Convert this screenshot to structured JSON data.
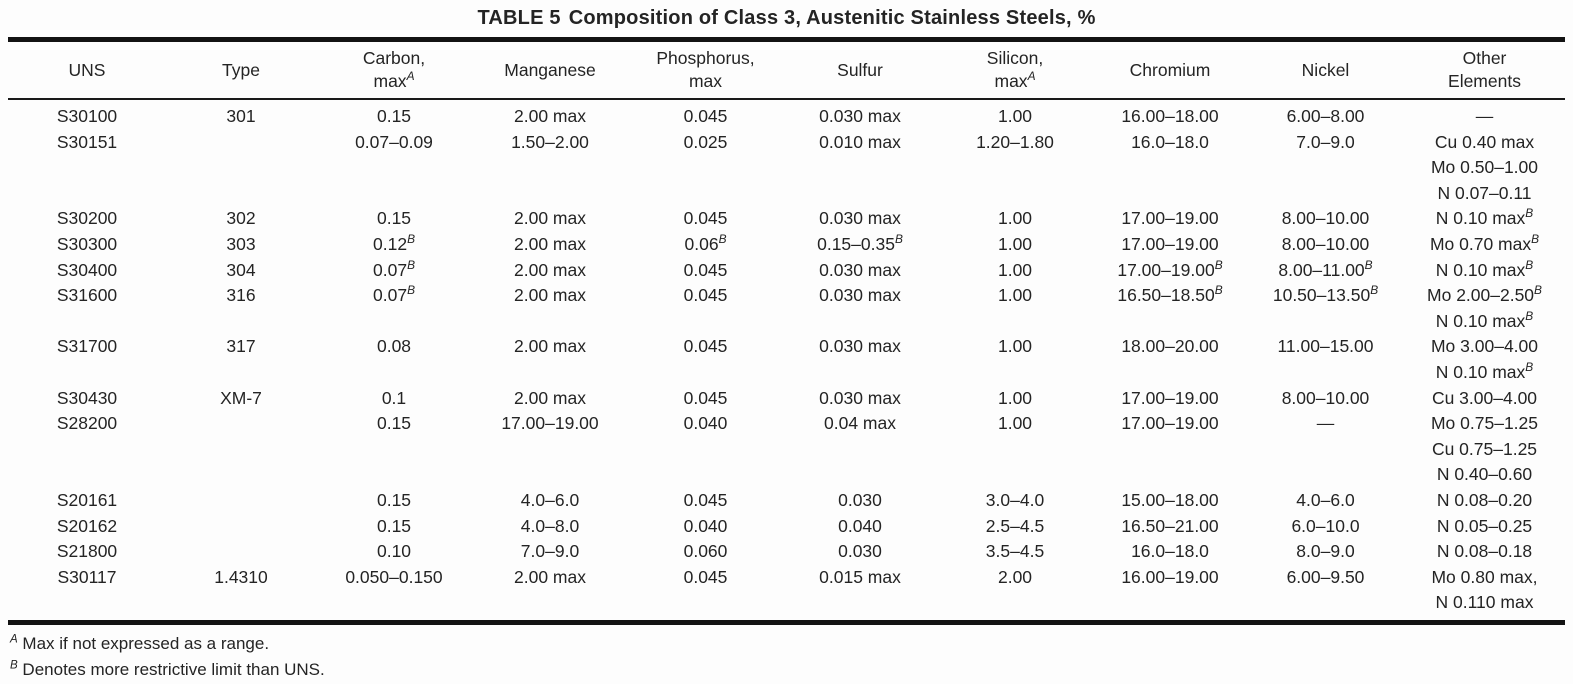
{
  "title": {
    "label": "TABLE 5",
    "text": "Composition of Class 3, Austenitic Stainless Steels, %"
  },
  "table": {
    "columns": [
      "UNS",
      "Type",
      "Carbon,\nmax^A",
      "Manganese",
      "Phosphorus,\nmax",
      "Sulfur",
      "Silicon,\nmax^A",
      "Chromium",
      "Nickel",
      "Other\nElements"
    ],
    "rows": [
      [
        "S30100",
        "301",
        "0.15",
        "2.00 max",
        "0.045",
        "0.030 max",
        "1.00",
        "16.00–18.00",
        "6.00–8.00",
        "—"
      ],
      [
        "S30151",
        "",
        "0.07–0.09",
        "1.50–2.00",
        "0.025",
        "0.010 max",
        "1.20–1.80",
        "16.0–18.0",
        "7.0–9.0",
        "Cu 0.40 max\nMo 0.50–1.00\nN 0.07–0.11"
      ],
      [
        "S30200",
        "302",
        "0.15",
        "2.00 max",
        "0.045",
        "0.030 max",
        "1.00",
        "17.00–19.00",
        "8.00–10.00",
        "N 0.10 max^B"
      ],
      [
        "S30300",
        "303",
        "0.12^B",
        "2.00 max",
        "0.06^B",
        "0.15–0.35^B",
        "1.00",
        "17.00–19.00",
        "8.00–10.00",
        "Mo 0.70 max^B"
      ],
      [
        "S30400",
        "304",
        "0.07^B",
        "2.00 max",
        "0.045",
        "0.030 max",
        "1.00",
        "17.00–19.00^B",
        "8.00–11.00^B",
        "N 0.10 max^B"
      ],
      [
        "S31600",
        "316",
        "0.07^B",
        "2.00 max",
        "0.045",
        "0.030 max",
        "1.00",
        "16.50–18.50^B",
        "10.50–13.50^B",
        "Mo 2.00–2.50^B\nN 0.10 max^B"
      ],
      [
        "S31700",
        "317",
        "0.08",
        "2.00 max",
        "0.045",
        "0.030 max",
        "1.00",
        "18.00–20.00",
        "11.00–15.00",
        "Mo 3.00–4.00\nN 0.10 max^B"
      ],
      [
        "S30430",
        "XM-7",
        "0.1",
        "2.00 max",
        "0.045",
        "0.030 max",
        "1.00",
        "17.00–19.00",
        "8.00–10.00",
        "Cu 3.00–4.00"
      ],
      [
        "S28200",
        "",
        "0.15",
        "17.00–19.00",
        "0.040",
        "0.04 max",
        "1.00",
        "17.00–19.00",
        "—",
        "Mo 0.75–1.25\nCu 0.75–1.25\nN 0.40–0.60"
      ],
      [
        "S20161",
        "",
        "0.15",
        "4.0–6.0",
        "0.045",
        "0.030",
        "3.0–4.0",
        "15.00–18.00",
        "4.0–6.0",
        "N 0.08–0.20"
      ],
      [
        "S20162",
        "",
        "0.15",
        "4.0–8.0",
        "0.040",
        "0.040",
        "2.5–4.5",
        "16.50–21.00",
        "6.0–10.0",
        "N 0.05–0.25"
      ],
      [
        "S21800",
        "",
        "0.10",
        "7.0–9.0",
        "0.060",
        "0.030",
        "3.5–4.5",
        "16.0–18.0",
        "8.0–9.0",
        "N 0.08–0.18"
      ],
      [
        "S30117",
        "1.4310",
        "0.050–0.150",
        "2.00 max",
        "0.045",
        "0.015 max",
        "2.00",
        "16.00–19.00",
        "6.00–9.50",
        "Mo 0.80 max,\nN 0.110 max"
      ]
    ]
  },
  "footnotes": [
    {
      "marker": "A",
      "text": "Max if not expressed as a range."
    },
    {
      "marker": "B",
      "text": "Denotes more restrictive limit than UNS."
    }
  ],
  "colors": {
    "text": "#242424",
    "rule": "#131313",
    "background": "#fdfdfd"
  }
}
